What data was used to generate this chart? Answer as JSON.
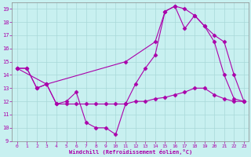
{
  "xlabel": "Windchill (Refroidissement éolien,°C)",
  "bg_color": "#c8f0f0",
  "grid_color": "#a8d8d8",
  "line_color": "#aa00aa",
  "xlim": [
    -0.5,
    23.5
  ],
  "ylim": [
    9,
    19.5
  ],
  "yticks": [
    9,
    10,
    11,
    12,
    13,
    14,
    15,
    16,
    17,
    18,
    19
  ],
  "xticks": [
    0,
    1,
    2,
    3,
    4,
    5,
    6,
    7,
    8,
    9,
    10,
    11,
    12,
    13,
    14,
    15,
    16,
    17,
    18,
    19,
    20,
    21,
    22,
    23
  ],
  "line1_x": [
    0,
    1,
    2,
    3,
    4,
    5,
    6,
    7,
    8,
    9,
    10,
    11,
    12,
    13,
    14,
    15,
    16,
    17,
    18,
    19,
    20,
    21,
    22,
    23
  ],
  "line1_y": [
    14.5,
    14.5,
    13.0,
    13.3,
    11.8,
    12.0,
    12.7,
    10.4,
    10.0,
    10.0,
    9.5,
    11.8,
    13.3,
    14.5,
    15.5,
    18.8,
    19.2,
    19.0,
    18.5,
    17.7,
    16.5,
    14.0,
    12.2,
    12.0
  ],
  "line2_x": [
    0,
    1,
    2,
    3,
    4,
    5,
    6,
    7,
    8,
    9,
    10,
    11,
    12,
    13,
    14,
    15,
    16,
    17,
    18,
    19,
    20,
    21,
    22,
    23
  ],
  "line2_y": [
    14.5,
    14.5,
    13.0,
    13.3,
    11.8,
    11.8,
    11.8,
    11.8,
    11.8,
    11.8,
    11.8,
    11.8,
    12.0,
    12.0,
    12.2,
    12.3,
    12.5,
    12.7,
    13.0,
    13.0,
    12.5,
    12.2,
    12.0,
    12.0
  ],
  "line3_x": [
    0,
    3,
    11,
    14,
    15,
    16,
    17,
    18,
    19,
    20,
    21,
    22,
    23
  ],
  "line3_y": [
    14.5,
    13.3,
    15.0,
    16.5,
    18.8,
    19.2,
    17.5,
    18.5,
    17.7,
    17.0,
    16.5,
    14.0,
    12.0
  ],
  "marker": "D",
  "markersize": 2.5,
  "linewidth": 0.8
}
